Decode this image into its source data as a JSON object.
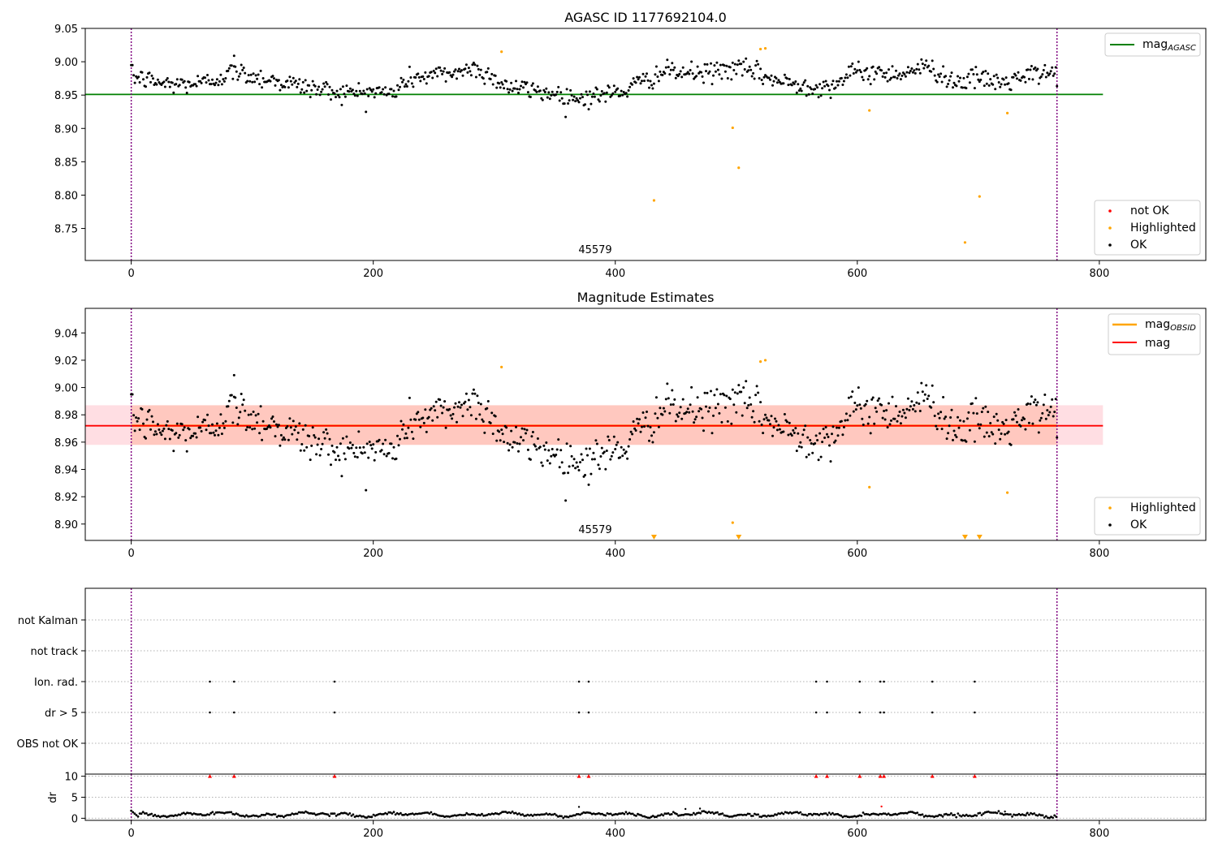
{
  "chart_data": [
    {
      "type": "scatter",
      "title": "AGASC ID 1177692104.0",
      "xlim": [
        -38,
        888
      ],
      "ylim": [
        8.702,
        9.05
      ],
      "x_ticks": [
        0,
        200,
        400,
        600,
        800
      ],
      "y_ticks": [
        8.75,
        8.8,
        8.85,
        8.9,
        8.95,
        9.0,
        9.05
      ],
      "y_tick_labels": [
        "8.75",
        "8.80",
        "8.85",
        "8.90",
        "8.95",
        "9.00",
        "9.05"
      ],
      "obsid_label": "45579",
      "obsid_label_x": 383,
      "obsid_boundaries": [
        0,
        765
      ],
      "reference_line": {
        "name": "mag",
        "sub": "AGASC",
        "value": 8.951,
        "x_range": [
          -38,
          803
        ],
        "color": "#008000"
      },
      "highlighted": [
        {
          "x": 306,
          "y": 9.015
        },
        {
          "x": 432,
          "y": 8.792
        },
        {
          "x": 497,
          "y": 8.901
        },
        {
          "x": 502,
          "y": 8.841
        },
        {
          "x": 520,
          "y": 9.019
        },
        {
          "x": 524,
          "y": 9.02
        },
        {
          "x": 610,
          "y": 8.927
        },
        {
          "x": 689,
          "y": 8.729
        },
        {
          "x": 701,
          "y": 8.798
        },
        {
          "x": 724,
          "y": 8.923
        }
      ],
      "legend": {
        "placement": "lower-right",
        "items": [
          {
            "label": "not OK",
            "color": "#ff0000"
          },
          {
            "label": "Highlighted",
            "color": "#ffa500"
          },
          {
            "label": "OK",
            "color": "#000000"
          }
        ]
      },
      "line_legend": {
        "placement": "upper-right",
        "label": "mag",
        "sub": "AGASC"
      }
    },
    {
      "type": "scatter",
      "title": "Magnitude Estimates",
      "xlim": [
        -38,
        888
      ],
      "ylim": [
        8.888,
        9.058
      ],
      "x_ticks": [
        0,
        200,
        400,
        600,
        800
      ],
      "y_ticks": [
        8.9,
        8.92,
        8.94,
        8.96,
        8.98,
        9.0,
        9.02,
        9.04
      ],
      "y_tick_labels": [
        "8.90",
        "8.92",
        "8.94",
        "8.96",
        "8.98",
        "9.00",
        "9.02",
        "9.04"
      ],
      "obsid_label": "45579",
      "obsid_label_x": 383,
      "obsid_boundaries": [
        0,
        765
      ],
      "mag_line": {
        "name": "mag",
        "value": 8.972,
        "x_range": [
          -38,
          803
        ],
        "color": "#ff0000"
      },
      "mag_band": {
        "low": 8.958,
        "high": 8.987,
        "color": "#ffb6c1"
      },
      "obsid_line": {
        "name": "mag",
        "sub": "OBSID",
        "value": 8.972,
        "x_range": [
          0,
          765
        ],
        "color": "#ffa500"
      },
      "obsid_band": {
        "low": 8.958,
        "high": 8.987,
        "x_range": [
          0,
          765
        ],
        "color": "#ffa07a"
      },
      "highlighted": [
        {
          "x": 306,
          "y": 9.015
        },
        {
          "x": 497,
          "y": 8.901
        },
        {
          "x": 520,
          "y": 9.019
        },
        {
          "x": 524,
          "y": 9.02
        },
        {
          "x": 610,
          "y": 8.927
        },
        {
          "x": 724,
          "y": 8.923
        }
      ],
      "highlighted_offscale_x": [
        432,
        502,
        689,
        701
      ],
      "legend_lines": {
        "placement": "upper-right",
        "items": [
          {
            "label": "mag",
            "sub": "OBSID",
            "color": "#ffa500"
          },
          {
            "label": "mag",
            "sub": "",
            "color": "#ff0000"
          }
        ]
      },
      "legend": {
        "placement": "lower-right",
        "items": [
          {
            "label": "Highlighted",
            "color": "#ffa500"
          },
          {
            "label": "OK",
            "color": "#000000"
          }
        ]
      }
    },
    {
      "type": "scatter",
      "title": "",
      "xlim": [
        -38,
        888
      ],
      "x_ticks": [
        0,
        200,
        400,
        600,
        800
      ],
      "flag_rows": [
        "not Kalman",
        "not track",
        "Ion. rad.",
        "dr > 5",
        "OBS not OK"
      ],
      "flag_events_x": [
        65,
        85,
        168,
        370,
        378,
        566,
        575,
        602,
        619,
        622,
        662,
        697
      ],
      "flagged_rows": [
        "Ion. rad.",
        "dr > 5"
      ],
      "obsid_boundaries": [
        0,
        765
      ]
    },
    {
      "type": "scatter",
      "title": "",
      "ylabel": "dr",
      "xlim": [
        -38,
        888
      ],
      "ylim": [
        -0.5,
        10.5
      ],
      "x_ticks": [
        0,
        200,
        400,
        600,
        800
      ],
      "y_ticks": [
        0,
        5,
        10
      ],
      "y_tick_labels": [
        "0",
        "5",
        "10"
      ],
      "clipped_value": 10,
      "clipped_x": [
        65,
        85,
        168,
        370,
        378,
        566,
        575,
        602,
        619,
        622,
        662,
        697
      ],
      "outliers": [
        {
          "x": 370,
          "y": 2.7
        },
        {
          "x": 458,
          "y": 2.2
        },
        {
          "x": 470,
          "y": 2.3
        },
        {
          "x": 620,
          "y": 2.8
        },
        {
          "x": 722,
          "y": 1.6
        },
        {
          "x": 740,
          "y": 1.1
        }
      ],
      "obsid_boundaries": [
        0,
        765
      ]
    }
  ],
  "colors": {
    "ok": "#000000",
    "highlighted": "#ffa500",
    "not_ok": "#ff0000",
    "agasc_line": "#008000",
    "mag_line": "#ff0000",
    "obsid_line": "#ffa500",
    "obsid_boundary": "#800080"
  }
}
